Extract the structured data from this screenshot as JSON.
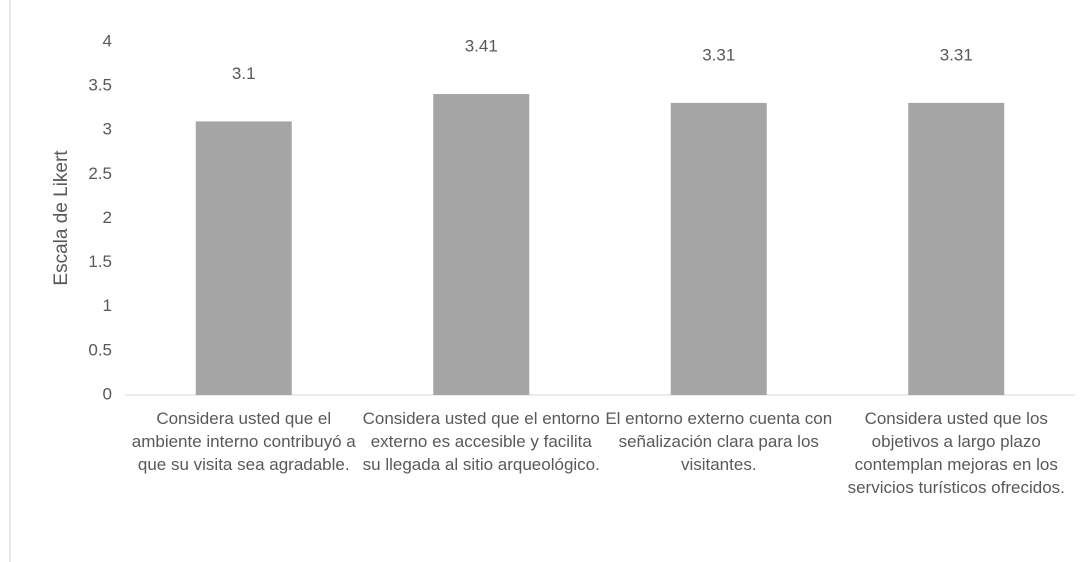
{
  "chart_data": {
    "type": "bar",
    "y_label": "Escala de Likert",
    "categories": [
      "Considera usted que el ambiente interno contribuyó a que su visita sea agradable.",
      "Considera usted que el entorno externo es accesible y facilita su llegada al sitio arqueológico.",
      "El entorno externo cuenta con señalización clara para los visitantes.",
      "Considera usted que los objetivos a largo plazo contemplan mejoras en los servicios turísticos ofrecidos."
    ],
    "values": [
      3.1,
      3.41,
      3.31,
      3.31
    ],
    "color": "#a5a5a5",
    "ylim": [
      0,
      4
    ],
    "yticks": [
      0,
      0.5,
      1,
      1.5,
      2,
      2.5,
      3,
      3.5,
      4
    ],
    "grid": false,
    "data_labels": true
  }
}
